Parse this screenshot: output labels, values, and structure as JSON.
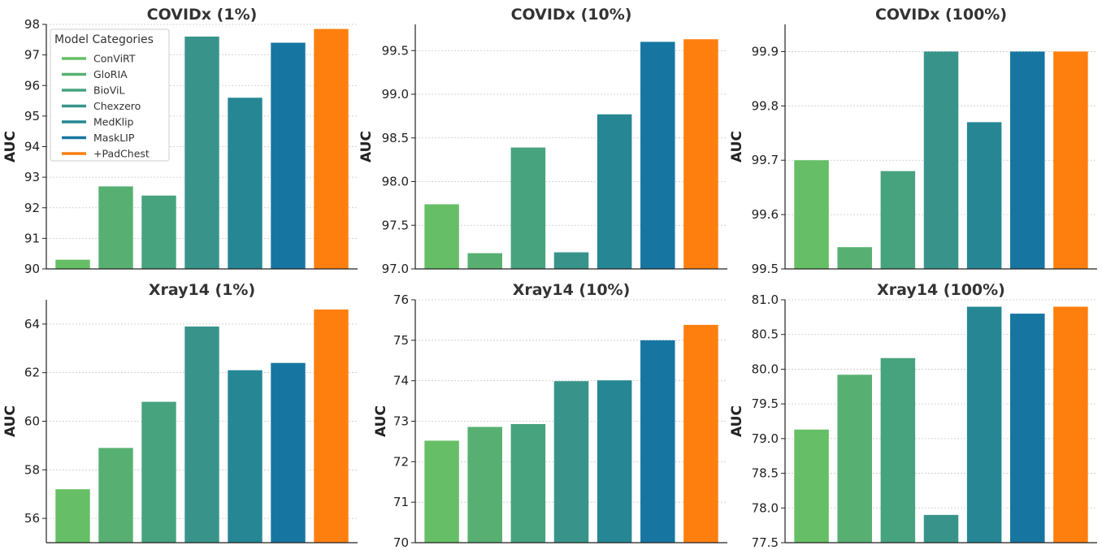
{
  "chart_data": [
    {
      "type": "bar",
      "title": "COVIDx (1%)",
      "xlabel": "",
      "ylabel": "AUC",
      "categories": [
        "ConViRT",
        "GloRIA",
        "BioViL",
        "Chexzero",
        "MedKlip",
        "MaskLIP",
        "+PadChest"
      ],
      "values": [
        90.3,
        92.7,
        92.4,
        97.6,
        95.6,
        97.4,
        97.85
      ],
      "ylim": [
        90,
        98
      ],
      "yticks": [
        90,
        91,
        92,
        93,
        94,
        95,
        96,
        97,
        98
      ],
      "ytick_labels": [
        "90",
        "91",
        "92",
        "93",
        "94",
        "95",
        "96",
        "97",
        "98"
      ],
      "grid": true,
      "legend": {
        "title": "Model Categories",
        "placement": "top-left"
      }
    },
    {
      "type": "bar",
      "title": "COVIDx (10%)",
      "xlabel": "",
      "ylabel": "AUC",
      "categories": [
        "ConViRT",
        "GloRIA",
        "BioViL",
        "Chexzero",
        "MedKlip",
        "MaskLIP",
        "+PadChest"
      ],
      "values": [
        97.74,
        97.18,
        98.39,
        97.19,
        98.77,
        99.6,
        99.63
      ],
      "ylim": [
        97.0,
        99.8
      ],
      "yticks": [
        97.0,
        97.5,
        98.0,
        98.5,
        99.0,
        99.5
      ],
      "ytick_labels": [
        "97.0",
        "97.5",
        "98.0",
        "98.5",
        "99.0",
        "99.5"
      ],
      "grid": true
    },
    {
      "type": "bar",
      "title": "COVIDx (100%)",
      "xlabel": "",
      "ylabel": "AUC",
      "categories": [
        "ConViRT",
        "GloRIA",
        "BioViL",
        "Chexzero",
        "MedKlip",
        "MaskLIP",
        "+PadChest"
      ],
      "values": [
        99.7,
        99.54,
        99.68,
        99.9,
        99.77,
        99.9,
        99.9
      ],
      "ylim": [
        99.5,
        99.95
      ],
      "yticks": [
        99.5,
        99.6,
        99.7,
        99.8,
        99.9
      ],
      "ytick_labels": [
        "99.5",
        "99.6",
        "99.7",
        "99.8",
        "99.9"
      ],
      "grid": true
    },
    {
      "type": "bar",
      "title": "Xray14 (1%)",
      "xlabel": "",
      "ylabel": "AUC",
      "categories": [
        "ConViRT",
        "GloRIA",
        "BioViL",
        "Chexzero",
        "MedKlip",
        "MaskLIP",
        "+PadChest"
      ],
      "values": [
        57.2,
        58.9,
        60.8,
        63.9,
        62.1,
        62.4,
        64.6
      ],
      "ylim": [
        55,
        65
      ],
      "yticks": [
        56,
        58,
        60,
        62,
        64
      ],
      "ytick_labels": [
        "56",
        "58",
        "60",
        "62",
        "64"
      ],
      "grid": true
    },
    {
      "type": "bar",
      "title": "Xray14 (10%)",
      "xlabel": "",
      "ylabel": "AUC",
      "categories": [
        "ConViRT",
        "GloRIA",
        "BioViL",
        "Chexzero",
        "MedKlip",
        "MaskLIP",
        "+PadChest"
      ],
      "values": [
        72.52,
        72.86,
        72.93,
        73.99,
        74.01,
        75.0,
        75.38
      ],
      "ylim": [
        70,
        76
      ],
      "yticks": [
        70,
        71,
        72,
        73,
        74,
        75,
        76
      ],
      "ytick_labels": [
        "70",
        "71",
        "72",
        "73",
        "74",
        "75",
        "76"
      ],
      "grid": true
    },
    {
      "type": "bar",
      "title": "Xray14 (100%)",
      "xlabel": "",
      "ylabel": "AUC",
      "categories": [
        "ConViRT",
        "GloRIA",
        "BioViL",
        "Chexzero",
        "MedKlip",
        "MaskLIP",
        "+PadChest"
      ],
      "values": [
        79.13,
        79.92,
        80.16,
        77.9,
        80.9,
        80.8,
        80.9
      ],
      "ylim": [
        77.5,
        81.0
      ],
      "yticks": [
        77.5,
        78.0,
        78.5,
        79.0,
        79.5,
        80.0,
        80.5,
        81.0
      ],
      "ytick_labels": [
        "77.5",
        "78.0",
        "78.5",
        "79.0",
        "79.5",
        "80.0",
        "80.5",
        "81.0"
      ],
      "grid": true
    }
  ],
  "colors": {
    "ConViRT": "#66bf66",
    "GloRIA": "#57b072",
    "BioViL": "#47a37d",
    "Chexzero": "#38948a",
    "MedKlip": "#268694",
    "MaskLIP": "#1776a1",
    "+PadChest": "#ff7f0e"
  }
}
